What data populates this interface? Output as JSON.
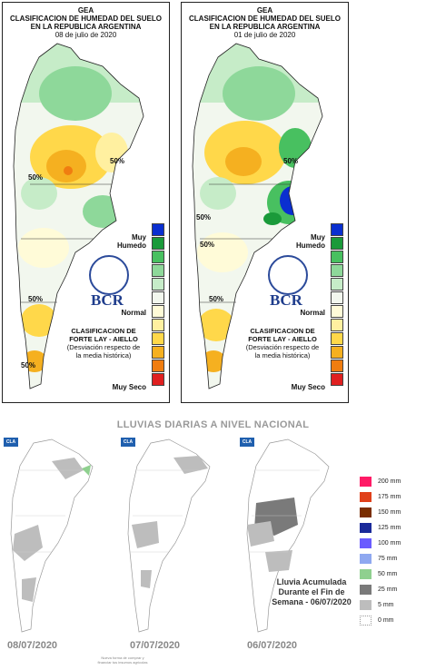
{
  "panels": [
    {
      "org": "GEA",
      "title_1": "CLASIFICACION DE HUMEDAD DEL SUELO",
      "title_2": "EN LA REPUBLICA ARGENTINA",
      "date": "08 de julio de 2020",
      "pct_labels": [
        "50%",
        "50%",
        "50%",
        "50%"
      ]
    },
    {
      "org": "GEA",
      "title_1": "CLASIFICACION DE HUMEDAD DEL SUELO",
      "title_2": "EN LA REPUBLICA ARGENTINA",
      "date": "01 de julio de 2020",
      "pct_labels": [
        "50%",
        "50%",
        "50%",
        "50%"
      ]
    }
  ],
  "moisture_legend": {
    "top_label": "Muy Humedo",
    "mid_label": "Normal",
    "bottom_label": "Muy Seco",
    "colors": [
      "#0a2fd0",
      "#1a9a3a",
      "#48c060",
      "#8ed89a",
      "#c6ecc8",
      "#f2f7ee",
      "#fffbd8",
      "#fff0a0",
      "#ffd84a",
      "#f5b020",
      "#f07d10",
      "#e02020"
    ]
  },
  "bcr": {
    "logo_text": "BCR",
    "class_title_1": "CLASIFICACION DE",
    "class_title_2": "FORTE LAY - AIELLO",
    "class_sub_1": "(Desviación respecto de",
    "class_sub_2": "la media histórica)"
  },
  "rain": {
    "title": "LLUVIAS DIARIAS A NIVEL NACIONAL",
    "logo": "CLA",
    "maps": [
      {
        "date": "08/07/2020"
      },
      {
        "date": "07/07/2020"
      },
      {
        "date": "06/07/2020"
      }
    ],
    "note": "Lluvia Acumulada Durante el Fin de Semana - 06/07/2020",
    "legend": [
      {
        "label": "200 mm",
        "color": "#ff1a66"
      },
      {
        "label": "175 mm",
        "color": "#e0401a"
      },
      {
        "label": "150 mm",
        "color": "#7a2e00"
      },
      {
        "label": "125 mm",
        "color": "#1a2a9a"
      },
      {
        "label": "100 mm",
        "color": "#6a5cff"
      },
      {
        "label": "75 mm",
        "color": "#8fa8f0"
      },
      {
        "label": "50 mm",
        "color": "#8fd08f"
      },
      {
        "label": "25 mm",
        "color": "#7a7a7a"
      },
      {
        "label": "5 mm",
        "color": "#bdbdbd"
      },
      {
        "label": "0 mm",
        "color": "#ffffff"
      }
    ],
    "footnote": "Nueva forma de comprar y financiar tus insumos agrícolas"
  }
}
